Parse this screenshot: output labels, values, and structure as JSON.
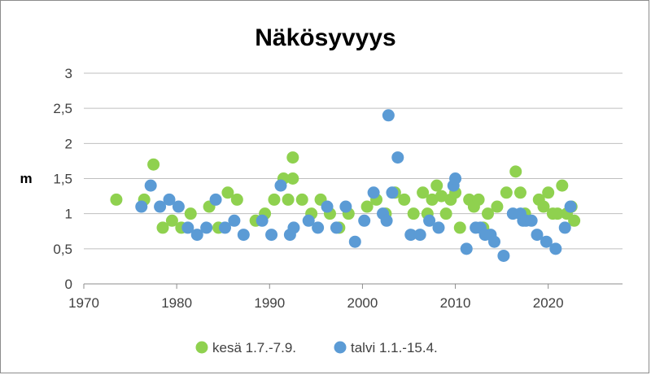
{
  "chart_data": {
    "type": "scatter",
    "title": "Näkösyvyys",
    "xlabel": "",
    "ylabel": "m",
    "xlim": [
      1970,
      2028
    ],
    "ylim": [
      0,
      3
    ],
    "x_ticks": [
      1970,
      1980,
      1990,
      2000,
      2010,
      2020
    ],
    "x_tick_labels": [
      "1970",
      "1980",
      "1990",
      "2000",
      "2010",
      "2020"
    ],
    "y_ticks": [
      0,
      0.5,
      1,
      1.5,
      2,
      2.5,
      3
    ],
    "y_tick_labels": [
      "0",
      "0,5",
      "1",
      "1,5",
      "2",
      "2,5",
      "3"
    ],
    "grid": "horizontal",
    "legend_position": "bottom",
    "series": [
      {
        "name": "kesä 1.7.-7.9.",
        "color": "#8fd14f",
        "points": [
          [
            1973.5,
            1.2
          ],
          [
            1976.5,
            1.2
          ],
          [
            1977.5,
            1.7
          ],
          [
            1978.5,
            0.8
          ],
          [
            1979.5,
            0.9
          ],
          [
            1980.5,
            0.8
          ],
          [
            1981.5,
            1.0
          ],
          [
            1983.5,
            1.1
          ],
          [
            1984.5,
            0.8
          ],
          [
            1985.5,
            1.3
          ],
          [
            1986.5,
            1.2
          ],
          [
            1988.5,
            0.9
          ],
          [
            1989.5,
            1.0
          ],
          [
            1990.5,
            1.2
          ],
          [
            1991.5,
            1.5
          ],
          [
            1992.0,
            1.2
          ],
          [
            1992.5,
            1.8
          ],
          [
            1992.5,
            1.5
          ],
          [
            1993.5,
            1.2
          ],
          [
            1994.5,
            1.0
          ],
          [
            1995.5,
            1.2
          ],
          [
            1996.5,
            1.0
          ],
          [
            1997.5,
            0.8
          ],
          [
            1998.5,
            1.0
          ],
          [
            2000.5,
            1.1
          ],
          [
            2001.5,
            1.2
          ],
          [
            2002.5,
            1.0
          ],
          [
            2003.5,
            1.3
          ],
          [
            2004.5,
            1.2
          ],
          [
            2005.5,
            1.0
          ],
          [
            2006.5,
            1.3
          ],
          [
            2007.0,
            1.0
          ],
          [
            2007.5,
            1.2
          ],
          [
            2008.0,
            1.4
          ],
          [
            2008.5,
            1.25
          ],
          [
            2009.0,
            1.0
          ],
          [
            2009.5,
            1.2
          ],
          [
            2010.0,
            1.3
          ],
          [
            2010.5,
            0.8
          ],
          [
            2011.5,
            1.2
          ],
          [
            2012.0,
            1.1
          ],
          [
            2012.5,
            1.2
          ],
          [
            2013.0,
            0.8
          ],
          [
            2013.5,
            1.0
          ],
          [
            2014.5,
            1.1
          ],
          [
            2015.5,
            1.3
          ],
          [
            2016.5,
            1.6
          ],
          [
            2017.0,
            1.3
          ],
          [
            2017.5,
            1.0
          ],
          [
            2019.0,
            1.2
          ],
          [
            2019.5,
            1.1
          ],
          [
            2020.0,
            1.3
          ],
          [
            2020.5,
            1.0
          ],
          [
            2021.0,
            1.0
          ],
          [
            2021.5,
            1.4
          ],
          [
            2022.0,
            1.0
          ],
          [
            2022.5,
            1.1
          ],
          [
            2022.8,
            0.9
          ]
        ]
      },
      {
        "name": "talvi 1.1.-15.4.",
        "color": "#5b9bd5",
        "points": [
          [
            1976.2,
            1.1
          ],
          [
            1977.2,
            1.4
          ],
          [
            1978.2,
            1.1
          ],
          [
            1979.2,
            1.2
          ],
          [
            1980.2,
            1.1
          ],
          [
            1981.2,
            0.8
          ],
          [
            1982.2,
            0.7
          ],
          [
            1983.2,
            0.8
          ],
          [
            1984.2,
            1.2
          ],
          [
            1985.2,
            0.8
          ],
          [
            1986.2,
            0.9
          ],
          [
            1987.2,
            0.7
          ],
          [
            1989.2,
            0.9
          ],
          [
            1990.2,
            0.7
          ],
          [
            1991.2,
            1.4
          ],
          [
            1992.2,
            0.7
          ],
          [
            1992.6,
            0.8
          ],
          [
            1994.2,
            0.9
          ],
          [
            1995.2,
            0.8
          ],
          [
            1996.2,
            1.1
          ],
          [
            1997.2,
            0.8
          ],
          [
            1998.2,
            1.1
          ],
          [
            1999.2,
            0.6
          ],
          [
            2000.2,
            0.9
          ],
          [
            2001.2,
            1.3
          ],
          [
            2002.2,
            1.0
          ],
          [
            2002.6,
            0.9
          ],
          [
            2002.8,
            2.4
          ],
          [
            2003.2,
            1.3
          ],
          [
            2003.8,
            1.8
          ],
          [
            2005.2,
            0.7
          ],
          [
            2006.2,
            0.7
          ],
          [
            2007.2,
            0.9
          ],
          [
            2008.2,
            0.8
          ],
          [
            2009.8,
            1.4
          ],
          [
            2010.0,
            1.5
          ],
          [
            2011.2,
            0.5
          ],
          [
            2012.2,
            0.8
          ],
          [
            2012.7,
            0.8
          ],
          [
            2013.2,
            0.7
          ],
          [
            2013.8,
            0.7
          ],
          [
            2014.2,
            0.6
          ],
          [
            2015.2,
            0.4
          ],
          [
            2016.2,
            1.0
          ],
          [
            2017.0,
            1.0
          ],
          [
            2017.3,
            0.9
          ],
          [
            2017.6,
            0.9
          ],
          [
            2018.2,
            0.9
          ],
          [
            2018.8,
            0.7
          ],
          [
            2019.8,
            0.6
          ],
          [
            2020.8,
            0.5
          ],
          [
            2021.8,
            0.8
          ],
          [
            2022.4,
            1.1
          ]
        ]
      }
    ]
  }
}
